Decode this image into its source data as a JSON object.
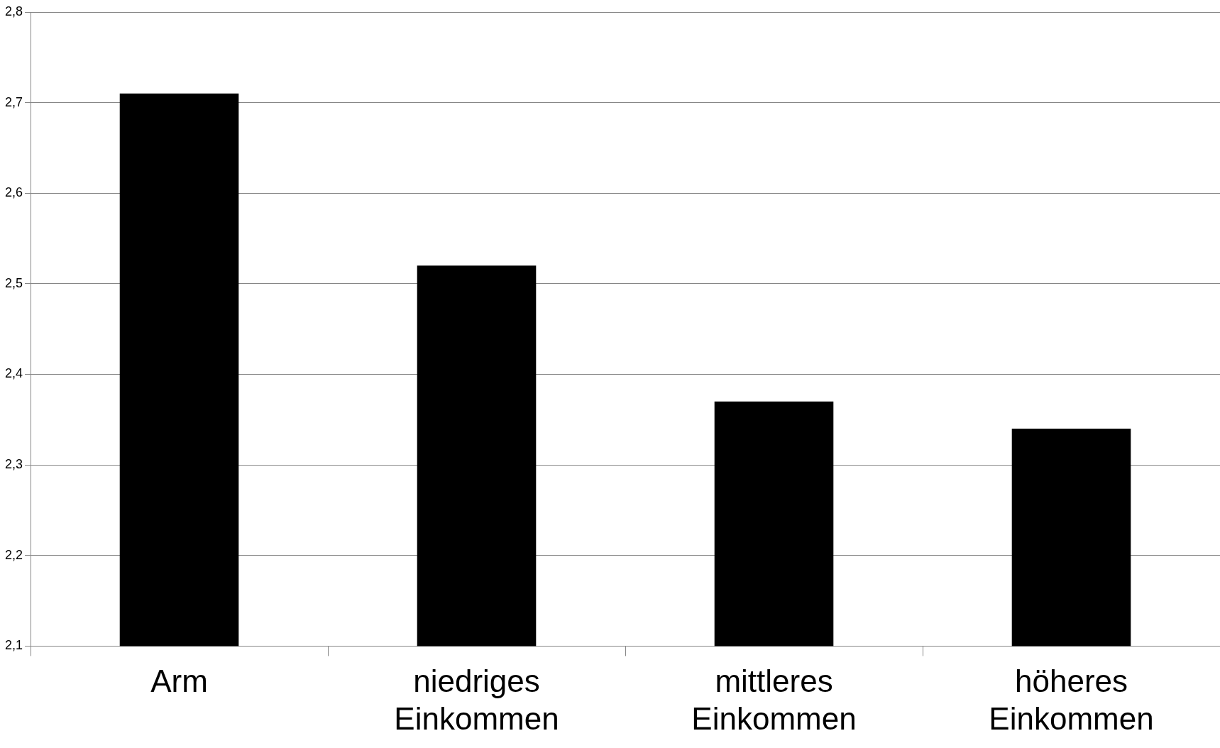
{
  "chart_data": {
    "type": "bar",
    "categories": [
      "Arm",
      "niedriges Einkommen",
      "mittleres Einkommen",
      "höheres Einkommen"
    ],
    "values": [
      2.71,
      2.52,
      2.37,
      2.34
    ],
    "color": "#000000",
    "ylim": [
      2.1,
      2.8
    ],
    "yticks": [
      {
        "value": 2.1,
        "label": "2,1"
      },
      {
        "value": 2.2,
        "label": "2,2"
      },
      {
        "value": 2.3,
        "label": "2,3"
      },
      {
        "value": 2.4,
        "label": "2,4"
      },
      {
        "value": 2.5,
        "label": "2,5"
      },
      {
        "value": 2.6,
        "label": "2,6"
      },
      {
        "value": 2.7,
        "label": "2,7"
      },
      {
        "value": 2.8,
        "label": "2,8"
      }
    ],
    "grid": "y",
    "legend": false
  }
}
